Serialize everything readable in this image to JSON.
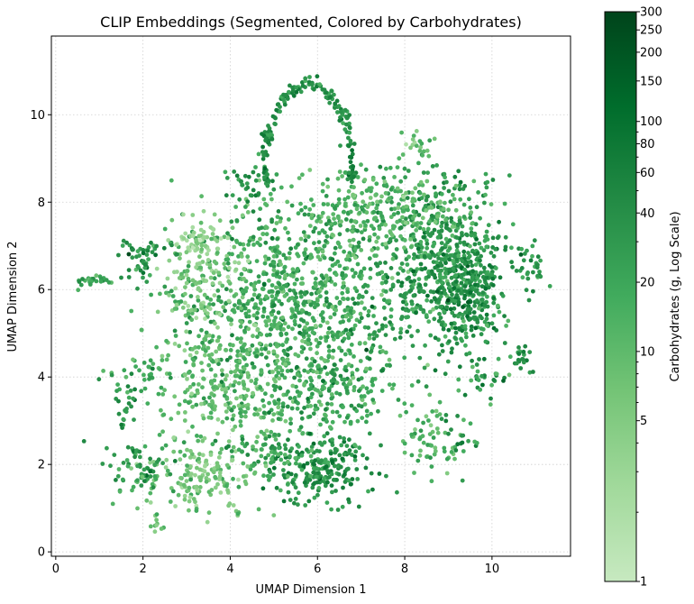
{
  "chart_data": {
    "type": "scatter",
    "title": "CLIP Embeddings (Segmented, Colored by Carbohydrates)",
    "xlabel": "UMAP Dimension 1",
    "ylabel": "UMAP Dimension 2",
    "xlim": [
      -0.1,
      11.8
    ],
    "ylim": [
      -0.1,
      11.8
    ],
    "xticks": [
      0,
      2,
      4,
      6,
      8,
      10
    ],
    "yticks": [
      0,
      2,
      4,
      6,
      8,
      10
    ],
    "grid": true,
    "colorbar": {
      "label": "Carbohydrates (g, Log Scale)",
      "scale": "log",
      "range": [
        1,
        300
      ],
      "ticks": [
        1,
        5,
        10,
        20,
        40,
        60,
        80,
        100,
        150,
        200,
        250,
        300
      ],
      "colormap": "Greens",
      "color_stops": [
        "#c7e9c0",
        "#a1d99b",
        "#74c476",
        "#41ab5d",
        "#238b45",
        "#006d2c",
        "#00441b"
      ]
    },
    "clusters": [
      {
        "x": 5.4,
        "y": 5.8,
        "sx": 1.3,
        "sy": 1.2,
        "n": 900,
        "c": 18
      },
      {
        "x": 8.8,
        "y": 6.6,
        "sx": 0.8,
        "sy": 1.0,
        "n": 550,
        "c": 30
      },
      {
        "x": 7.6,
        "y": 7.8,
        "sx": 0.9,
        "sy": 0.5,
        "n": 250,
        "c": 12
      },
      {
        "x": 9.4,
        "y": 6.0,
        "sx": 0.4,
        "sy": 0.6,
        "n": 220,
        "c": 40
      },
      {
        "x": 4.0,
        "y": 3.8,
        "sx": 0.9,
        "sy": 0.8,
        "n": 320,
        "c": 10
      },
      {
        "x": 6.3,
        "y": 3.8,
        "sx": 0.7,
        "sy": 0.6,
        "n": 200,
        "c": 20
      },
      {
        "x": 3.4,
        "y": 6.4,
        "sx": 0.5,
        "sy": 0.7,
        "n": 140,
        "c": 5
      },
      {
        "x": 6.0,
        "y": 1.9,
        "sx": 0.6,
        "sy": 0.4,
        "n": 220,
        "c": 35
      },
      {
        "x": 3.3,
        "y": 1.7,
        "sx": 0.6,
        "sy": 0.4,
        "n": 140,
        "c": 6
      },
      {
        "x": 2.0,
        "y": 1.9,
        "sx": 0.4,
        "sy": 0.3,
        "n": 70,
        "c": 30
      },
      {
        "x": 4.8,
        "y": 2.2,
        "sx": 0.4,
        "sy": 0.3,
        "n": 60,
        "c": 20
      },
      {
        "x": 8.6,
        "y": 2.6,
        "sx": 0.4,
        "sy": 0.4,
        "n": 60,
        "c": 12
      },
      {
        "x": 9.3,
        "y": 2.6,
        "sx": 0.2,
        "sy": 0.3,
        "n": 20,
        "c": 25
      },
      {
        "x": 9.8,
        "y": 4.0,
        "sx": 0.3,
        "sy": 0.3,
        "n": 30,
        "c": 30
      },
      {
        "x": 10.6,
        "y": 4.5,
        "sx": 0.15,
        "sy": 0.15,
        "n": 20,
        "c": 40
      },
      {
        "x": 10.9,
        "y": 6.5,
        "sx": 0.25,
        "sy": 0.25,
        "n": 30,
        "c": 25
      },
      {
        "x": 1.9,
        "y": 6.7,
        "sx": 0.2,
        "sy": 0.3,
        "n": 40,
        "c": 35
      },
      {
        "x": 2.5,
        "y": 6.9,
        "sx": 0.2,
        "sy": 0.1,
        "n": 10,
        "c": 40
      },
      {
        "x": 0.8,
        "y": 6.2,
        "sx": 0.2,
        "sy": 0.05,
        "n": 25,
        "c": 25
      },
      {
        "x": 1.6,
        "y": 3.4,
        "sx": 0.15,
        "sy": 0.25,
        "n": 20,
        "c": 25
      },
      {
        "x": 2.3,
        "y": 0.6,
        "sx": 0.08,
        "sy": 0.1,
        "n": 8,
        "c": 8
      },
      {
        "x": 4.2,
        "y": 0.9,
        "sx": 0.08,
        "sy": 0.08,
        "n": 5,
        "c": 8
      },
      {
        "x": 8.3,
        "y": 9.3,
        "sx": 0.15,
        "sy": 0.15,
        "n": 15,
        "c": 6
      },
      {
        "x": 4.5,
        "y": 8.4,
        "sx": 0.3,
        "sy": 0.2,
        "n": 30,
        "c": 45
      },
      {
        "x": 3.3,
        "y": 7.1,
        "sx": 0.3,
        "sy": 0.15,
        "n": 40,
        "c": 3
      },
      {
        "x": 2.0,
        "y": 3.9,
        "sx": 0.3,
        "sy": 0.2,
        "n": 25,
        "c": 25
      }
    ],
    "arc": {
      "cx": 5.8,
      "cy": 8.8,
      "rx": 1.0,
      "ry": 1.9,
      "from_deg": 200,
      "to_deg": -20,
      "n": 180,
      "c": 40
    }
  }
}
